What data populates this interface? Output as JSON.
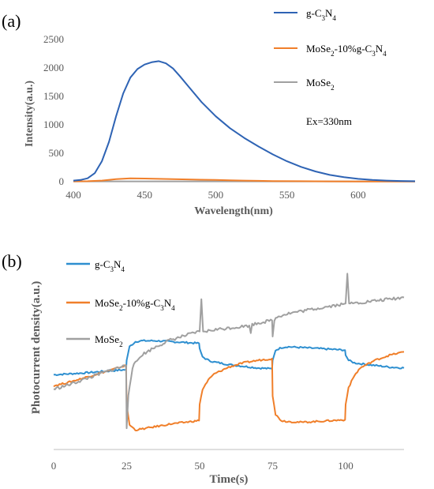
{
  "chart_data": [
    {
      "panel_label": "(a)",
      "type": "line",
      "xlabel": "Wavelength(nm)",
      "ylabel": "Intensity(a.u.)",
      "xlim": [
        400,
        640
      ],
      "ylim": [
        0,
        2500
      ],
      "xticks": [
        "400",
        "450",
        "500",
        "550",
        "600"
      ],
      "yticks": [
        "0",
        "500",
        "1000",
        "1500",
        "2000",
        "2500"
      ],
      "grid": false,
      "legend_position": "top-right",
      "annotation": "Ex=330nm",
      "series": [
        {
          "name": "g-C3N4",
          "legend_html": "g-C<tspan baseline-shift='sub' font-size='9'>3</tspan>N<tspan baseline-shift='sub' font-size='9'>4</tspan>",
          "color": "#2E63B4",
          "x": [
            400,
            405,
            410,
            415,
            420,
            425,
            430,
            435,
            440,
            445,
            450,
            455,
            460,
            465,
            470,
            475,
            480,
            490,
            500,
            510,
            520,
            530,
            540,
            550,
            560,
            570,
            580,
            590,
            600,
            610,
            620,
            630,
            640
          ],
          "y": [
            20,
            30,
            60,
            150,
            360,
            700,
            1150,
            1550,
            1830,
            1980,
            2060,
            2100,
            2120,
            2080,
            1990,
            1850,
            1700,
            1400,
            1150,
            940,
            770,
            620,
            480,
            360,
            260,
            180,
            120,
            80,
            50,
            30,
            20,
            12,
            8
          ]
        },
        {
          "name": "MoSe2-10%g-C3N4",
          "legend_html": "MoSe<tspan baseline-shift='sub' font-size='9'>2</tspan>-10%g-C<tspan baseline-shift='sub' font-size='9'>3</tspan>N<tspan baseline-shift='sub' font-size='9'>4</tspan>",
          "color": "#F07F2A",
          "x": [
            400,
            410,
            420,
            430,
            440,
            450,
            460,
            470,
            480,
            490,
            500,
            510,
            520,
            530,
            540,
            560,
            580,
            600,
            620,
            640
          ],
          "y": [
            5,
            8,
            20,
            45,
            60,
            55,
            50,
            45,
            40,
            35,
            30,
            25,
            20,
            15,
            10,
            8,
            6,
            4,
            3,
            3
          ]
        },
        {
          "name": "MoSe2",
          "legend_html": "MoSe<tspan baseline-shift='sub' font-size='9'>2</tspan>",
          "color": "#A0A0A0",
          "x": [
            400,
            640
          ],
          "y": [
            5,
            5
          ]
        }
      ]
    },
    {
      "panel_label": "(b)",
      "type": "line",
      "xlabel": "Time(s)",
      "ylabel": "Photocurrent  density(a.u.)",
      "xlim": [
        0,
        120
      ],
      "ylim": [
        0,
        10
      ],
      "xticks": [
        "0",
        "25",
        "50",
        "75",
        "100"
      ],
      "grid": false,
      "legend_position": "top-left",
      "series": [
        {
          "name": "g-C3N4",
          "legend_html": "g-C<tspan baseline-shift='sub' font-size='9'>3</tspan>N<tspan baseline-shift='sub' font-size='9'>4</tspan>",
          "color": "#2E8FD0",
          "x": [
            0,
            10,
            24.8,
            25,
            26,
            28,
            30,
            35,
            40,
            45,
            49.8,
            50,
            51,
            53,
            55,
            60,
            65,
            70,
            74.8,
            75,
            76,
            78,
            80,
            85,
            90,
            95,
            99.8,
            100,
            101,
            103,
            105,
            110,
            115,
            120
          ],
          "y": [
            3.75,
            3.85,
            4.05,
            4.6,
            5.4,
            5.7,
            5.75,
            5.75,
            5.7,
            5.65,
            5.6,
            5.3,
            4.8,
            4.6,
            4.5,
            4.35,
            4.25,
            4.15,
            4.1,
            4.6,
            5.2,
            5.35,
            5.4,
            5.35,
            5.3,
            5.25,
            5.2,
            4.9,
            4.6,
            4.45,
            4.4,
            4.3,
            4.2,
            4.15
          ]
        },
        {
          "name": "MoSe2-10%g-C3N4",
          "legend_html": "MoSe<tspan baseline-shift='sub' font-size='9'>2</tspan>-10%g-C<tspan baseline-shift='sub' font-size='9'>3</tspan>N<tspan baseline-shift='sub' font-size='9'>4</tspan>",
          "color": "#F07F2A",
          "x": [
            0,
            5,
            10,
            15,
            20,
            24.8,
            25,
            26,
            28,
            30,
            35,
            40,
            45,
            49.8,
            50,
            51,
            53,
            55,
            60,
            65,
            70,
            74.8,
            75,
            76,
            78,
            80,
            85,
            90,
            95,
            99.8,
            100,
            101,
            103,
            105,
            110,
            115,
            120
          ],
          "y": [
            3.1,
            3.3,
            3.55,
            3.8,
            4.05,
            4.3,
            2.0,
            0.8,
            0.5,
            0.55,
            0.7,
            0.85,
            0.95,
            1.05,
            2.0,
            2.9,
            3.45,
            3.8,
            4.2,
            4.45,
            4.6,
            4.7,
            2.5,
            1.4,
            1.05,
            1.0,
            0.95,
            1.0,
            1.05,
            1.1,
            2.0,
            3.0,
            3.7,
            4.15,
            4.6,
            4.9,
            5.1
          ]
        },
        {
          "name": "MoSe2",
          "legend_html": "MoSe<tspan baseline-shift='sub' font-size='9'>2</tspan>",
          "color": "#A0A0A0",
          "x": [
            0,
            5,
            10,
            15,
            20,
            24.8,
            25,
            25.6,
            27,
            30,
            35,
            40,
            45,
            48,
            50,
            50.6,
            51.2,
            52,
            55,
            60,
            65,
            67,
            67.5,
            68,
            70,
            74.8,
            75,
            75.6,
            77,
            80,
            85,
            90,
            95,
            99,
            100,
            100.6,
            101.2,
            102,
            105,
            110,
            115,
            120
          ],
          "y": [
            2.9,
            3.15,
            3.45,
            3.75,
            4.05,
            4.3,
            0.6,
            2.6,
            4.2,
            4.9,
            5.4,
            5.8,
            6.05,
            6.2,
            6.3,
            8.2,
            6.3,
            6.3,
            6.4,
            6.5,
            6.6,
            6.65,
            6.2,
            6.7,
            6.8,
            6.95,
            6.0,
            7.0,
            7.2,
            7.35,
            7.5,
            7.65,
            7.8,
            7.9,
            7.95,
            9.7,
            7.95,
            7.95,
            8.0,
            8.1,
            8.2,
            8.3
          ]
        }
      ]
    }
  ]
}
